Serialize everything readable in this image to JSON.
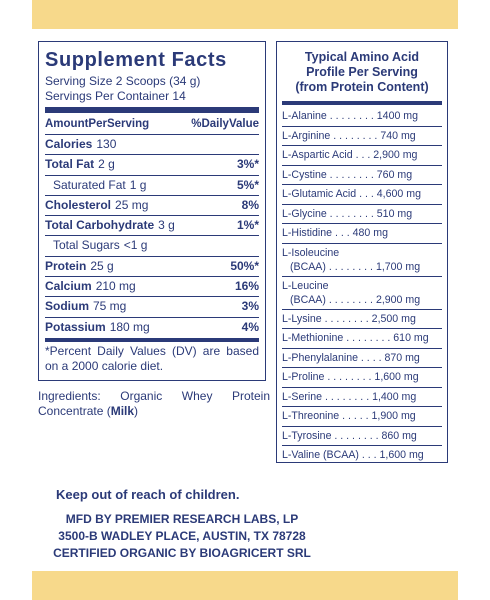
{
  "supplement_facts": {
    "title": "Supplement Facts",
    "serving_size": "Serving Size 2 Scoops (34 g)",
    "servings_per_container": "Servings Per Container 14",
    "header_amount": "AmountPerServing",
    "header_dv": "%DailyValue",
    "rows": [
      {
        "name": "Calories",
        "amount": "130",
        "dv": ""
      },
      {
        "name": "Total Fat",
        "amount": "2 g",
        "dv": "3%*"
      },
      {
        "name": "Saturated Fat",
        "amount": "1 g",
        "dv": "5%*"
      },
      {
        "name": "Cholesterol",
        "amount": "25 mg",
        "dv": "8%"
      },
      {
        "name": "Total Carbohydrate",
        "amount": "3 g",
        "dv": "1%*"
      },
      {
        "name": "Total Sugars",
        "amount": "<1 g",
        "dv": ""
      },
      {
        "name": "Protein",
        "amount": "25 g",
        "dv": "50%*"
      },
      {
        "name": "Calcium",
        "amount": "210 mg",
        "dv": "16%"
      },
      {
        "name": "Sodium",
        "amount": "75 mg",
        "dv": "3%"
      },
      {
        "name": "Potassium",
        "amount": "180 mg",
        "dv": "4%"
      }
    ],
    "footnote": "*Percent Daily Values (DV) are based on a 2000 calorie diet."
  },
  "ingredients": {
    "prefix": "Ingredients: Organic Whey Protein Concentrate (",
    "allergen": "Milk",
    "suffix": ")"
  },
  "amino_acids": {
    "title_line1": "Typical Amino Acid",
    "title_line2": "Profile Per Serving",
    "title_line3": "(from Protein Content)",
    "items": [
      "L-Alanine . . . . . . . . 1400 mg",
      "L-Arginine . . . . . . . . 740 mg",
      "L-Aspartic Acid . . . 2,900 mg",
      "L-Cystine . . . . . . . . 760 mg",
      "L-Glutamic Acid . . . 4,600 mg",
      "L-Glycine . . . . . . . . 510 mg",
      "L-Histidine . . . 480 mg",
      "L-Isoleucine|(BCAA) . . . . . . . . 1,700 mg",
      "L-Leucine|(BCAA) . . . . . . . . 2,900 mg",
      "L-Lysine . . . . . . . . 2,500 mg",
      "L-Methionine . . . . . . . . 610 mg",
      "L-Phenylalanine . . . . 870 mg",
      "L-Proline . . . . . . . . 1,600 mg",
      "L-Serine . . . . . . . . 1,400 mg",
      "L-Threonine . . . . . 1,900 mg",
      "L-Tyrosine . . . . . . . . 860 mg",
      "L-Valine (BCAA) . . . 1,600 mg"
    ]
  },
  "warning": "Keep out of reach of children.",
  "manufacturer": {
    "line1": "MFD BY PREMIER RESEARCH LABS, LP",
    "line2": "3500-B WADLEY PLACE, AUSTIN, TX 78728",
    "line3": "CERTIFIED ORGANIC BY BIOAGRICERT SRL"
  },
  "colors": {
    "ink": "#2b3a78",
    "band": "#f7d98b"
  }
}
